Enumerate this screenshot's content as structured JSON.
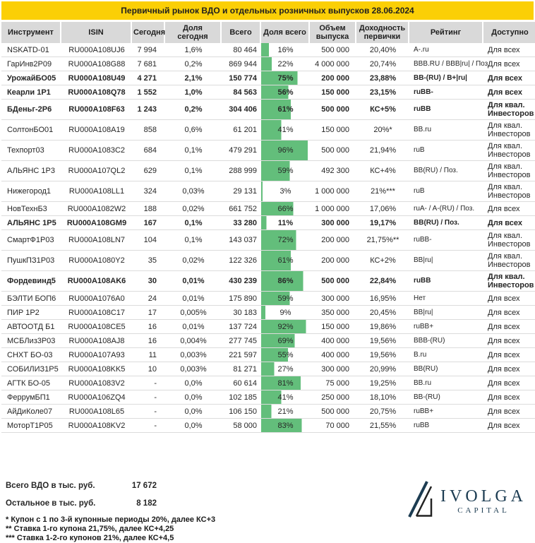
{
  "title": "Первичный рынок ВДО и отдельных розничных выпусков 28.06.2024",
  "colors": {
    "accent_yellow": "#FBCF06",
    "header_gray": "#D9D9D9",
    "bar_green": "#63BE7B",
    "logo_navy": "#1C3C52"
  },
  "chart_data": {
    "type": "table",
    "title": "Первичный рынок ВДО и отдельных розничных выпусков 28.06.2024",
    "bar_column": "Доля всего",
    "bar_range": [
      0,
      100
    ],
    "columns": [
      "Инструмент",
      "ISIN",
      "Сегодня",
      "Доля сегодня",
      "Всего",
      "Доля всего",
      "Объем выпуска",
      "Доходность первички",
      "Рейтинг",
      "Доступно"
    ],
    "rows": [
      {
        "instrument": "NSKATD-01",
        "isin": "RU000A108UJ6",
        "today": "7 994",
        "share_today": "1,6%",
        "total": "80 464",
        "share_total": "16%",
        "pct": 16,
        "volume": "500 000",
        "yield": "20,40%",
        "rating": "A-.ru",
        "access": "Для всех",
        "bold": false
      },
      {
        "instrument": "ГарИнв2Р09",
        "isin": "RU000A108G88",
        "today": "7 681",
        "share_today": "0,2%",
        "total": "869 944",
        "share_total": "22%",
        "pct": 22,
        "volume": "4 000 000",
        "yield": "20,74%",
        "rating": "BBB.RU / BBB|ru| / Поз.",
        "access": "Для всех",
        "bold": false
      },
      {
        "instrument": "УрожайБО05",
        "isin": "RU000A108U49",
        "today": "4 271",
        "share_today": "2,1%",
        "total": "150 774",
        "share_total": "75%",
        "pct": 75,
        "volume": "200 000",
        "yield": "23,88%",
        "rating": "BB-(RU) / B+|ru|",
        "access": "Для всех",
        "bold": true
      },
      {
        "instrument": "Кеарли 1Р1",
        "isin": "RU000A108Q78",
        "today": "1 552",
        "share_today": "1,0%",
        "total": "84 563",
        "share_total": "56%",
        "pct": 56,
        "volume": "150 000",
        "yield": "23,15%",
        "rating": "ruBB-",
        "access": "Для всех",
        "bold": true
      },
      {
        "instrument": "БДеньг-2Р6",
        "isin": "RU000A108F63",
        "today": "1 243",
        "share_today": "0,2%",
        "total": "304 406",
        "share_total": "61%",
        "pct": 61,
        "volume": "500 000",
        "yield": "КС+5%",
        "rating": "ruBB",
        "access": "Для квал. Инвесторов",
        "bold": true
      },
      {
        "instrument": "СолтонБО01",
        "isin": "RU000A108A19",
        "today": "858",
        "share_today": "0,6%",
        "total": "61 201",
        "share_total": "41%",
        "pct": 41,
        "volume": "150 000",
        "yield": "20%*",
        "rating": "BB.ru",
        "access": "Для квал. Инвесторов",
        "bold": false
      },
      {
        "instrument": "Техпорт03",
        "isin": "RU000A1083C2",
        "today": "684",
        "share_today": "0,1%",
        "total": "479 291",
        "share_total": "96%",
        "pct": 96,
        "volume": "500 000",
        "yield": "21,94%",
        "rating": "ruB",
        "access": "Для квал. Инвесторов",
        "bold": false
      },
      {
        "instrument": "АЛЬЯНС 1Р3",
        "isin": "RU000A107QL2",
        "today": "629",
        "share_today": "0,1%",
        "total": "288 999",
        "share_total": "59%",
        "pct": 59,
        "volume": "492 300",
        "yield": "КС+4%",
        "rating": "BB(RU) / Поз.",
        "access": "Для квал. Инвесторов",
        "bold": false
      },
      {
        "instrument": "Нижегород1",
        "isin": "RU000A108LL1",
        "today": "324",
        "share_today": "0,03%",
        "total": "29 131",
        "share_total": "3%",
        "pct": 3,
        "volume": "1 000 000",
        "yield": "21%***",
        "rating": "ruB",
        "access": "Для квал. Инвесторов",
        "bold": false
      },
      {
        "instrument": "НовТехнБ3",
        "isin": "RU000A1082W2",
        "today": "188",
        "share_today": "0,02%",
        "total": "661 752",
        "share_total": "66%",
        "pct": 66,
        "volume": "1 000 000",
        "yield": "17,06%",
        "rating": "ruA- / A-(RU) / Поз.",
        "access": "Для всех",
        "bold": false
      },
      {
        "instrument": "АЛЬЯНС 1Р5",
        "isin": "RU000A108GM9",
        "today": "167",
        "share_today": "0,1%",
        "total": "33 280",
        "share_total": "11%",
        "pct": 11,
        "volume": "300 000",
        "yield": "19,17%",
        "rating": "BB(RU) / Поз.",
        "access": "Для всех",
        "bold": true
      },
      {
        "instrument": "СмартФ1Р03",
        "isin": "RU000A108LN7",
        "today": "104",
        "share_today": "0,1%",
        "total": "143 037",
        "share_total": "72%",
        "pct": 72,
        "volume": "200 000",
        "yield": "21,75%**",
        "rating": "ruBB-",
        "access": "Для квал. Инвесторов",
        "bold": false
      },
      {
        "instrument": "ПушкПЗ1Р03",
        "isin": "RU000A1080Y2",
        "today": "35",
        "share_today": "0,02%",
        "total": "122 326",
        "share_total": "61%",
        "pct": 61,
        "volume": "200 000",
        "yield": "КС+2%",
        "rating": "BB|ru|",
        "access": "Для квал. Инвесторов",
        "bold": false
      },
      {
        "instrument": "Фордевинд5",
        "isin": "RU000A108AK6",
        "today": "30",
        "share_today": "0,01%",
        "total": "430 239",
        "share_total": "86%",
        "pct": 86,
        "volume": "500 000",
        "yield": "22,84%",
        "rating": "ruBB",
        "access": "Для квал. Инвесторов",
        "bold": true
      },
      {
        "instrument": "БЭЛТИ БОП6",
        "isin": "RU000A1076A0",
        "today": "24",
        "share_today": "0,01%",
        "total": "175 890",
        "share_total": "59%",
        "pct": 59,
        "volume": "300 000",
        "yield": "16,95%",
        "rating": "Нет",
        "access": "Для всех",
        "bold": false
      },
      {
        "instrument": "ПИР 1Р2",
        "isin": "RU000A108C17",
        "today": "17",
        "share_today": "0,005%",
        "total": "30 183",
        "share_total": "9%",
        "pct": 9,
        "volume": "350 000",
        "yield": "20,45%",
        "rating": "BB|ru|",
        "access": "Для всех",
        "bold": false
      },
      {
        "instrument": "АВТООТД Б1",
        "isin": "RU000A108CE5",
        "today": "16",
        "share_today": "0,01%",
        "total": "137 724",
        "share_total": "92%",
        "pct": 92,
        "volume": "150 000",
        "yield": "19,86%",
        "rating": "ruBB+",
        "access": "Для всех",
        "bold": false
      },
      {
        "instrument": "МСБЛиз3Р03",
        "isin": "RU000A108AJ8",
        "today": "16",
        "share_today": "0,004%",
        "total": "277 745",
        "share_total": "69%",
        "pct": 69,
        "volume": "400 000",
        "yield": "19,56%",
        "rating": "BBB-(RU)",
        "access": "Для всех",
        "bold": false
      },
      {
        "instrument": "СНХТ БО-03",
        "isin": "RU000A107A93",
        "today": "11",
        "share_today": "0,003%",
        "total": "221 597",
        "share_total": "55%",
        "pct": 55,
        "volume": "400 000",
        "yield": "19,56%",
        "rating": "B.ru",
        "access": "Для всех",
        "bold": false
      },
      {
        "instrument": "СОБИЛИЗ1Р5",
        "isin": "RU000A108KK5",
        "today": "10",
        "share_today": "0,003%",
        "total": "81 271",
        "share_total": "27%",
        "pct": 27,
        "volume": "300 000",
        "yield": "20,99%",
        "rating": "BB(RU)",
        "access": "Для всех",
        "bold": false
      },
      {
        "instrument": "АГТК БО-05",
        "isin": "RU000A1083V2",
        "today": "-",
        "share_today": "0,0%",
        "total": "60 614",
        "share_total": "81%",
        "pct": 81,
        "volume": "75 000",
        "yield": "19,25%",
        "rating": "BB.ru",
        "access": "Для всех",
        "bold": false
      },
      {
        "instrument": "ФеррумБП1",
        "isin": "RU000A106ZQ4",
        "today": "-",
        "share_today": "0,0%",
        "total": "102 185",
        "share_total": "41%",
        "pct": 41,
        "volume": "250 000",
        "yield": "18,10%",
        "rating": "BB-(RU)",
        "access": "Для всех",
        "bold": false
      },
      {
        "instrument": "АйДиКоле07",
        "isin": "RU000A108L65",
        "today": "-",
        "share_today": "0,0%",
        "total": "106 150",
        "share_total": "21%",
        "pct": 21,
        "volume": "500 000",
        "yield": "20,75%",
        "rating": "ruBB+",
        "access": "Для всех",
        "bold": false
      },
      {
        "instrument": "МоторТ1Р05",
        "isin": "RU000A108KV2",
        "today": "-",
        "share_today": "0,0%",
        "total": "58 000",
        "share_total": "83%",
        "pct": 83,
        "volume": "70 000",
        "yield": "21,55%",
        "rating": "ruBB",
        "access": "Для всех",
        "bold": false
      }
    ]
  },
  "footer": {
    "totals": [
      {
        "label": "Всего ВДО в тыс. руб.",
        "value": "17 672"
      },
      {
        "label": "Остальное в тыс. руб.",
        "value": "8 182"
      }
    ],
    "footnotes": [
      "* Купон с 1 по 3-й купонные периоды 20%, далее КС+3",
      "** Ставка 1-го купона 21,75%, далее КС+4,25",
      "*** Ставка 1-2-го купонов 21%, далее КС+4,5"
    ]
  },
  "logo": {
    "name": "IVOLGA",
    "subtitle": "CAPITAL"
  }
}
